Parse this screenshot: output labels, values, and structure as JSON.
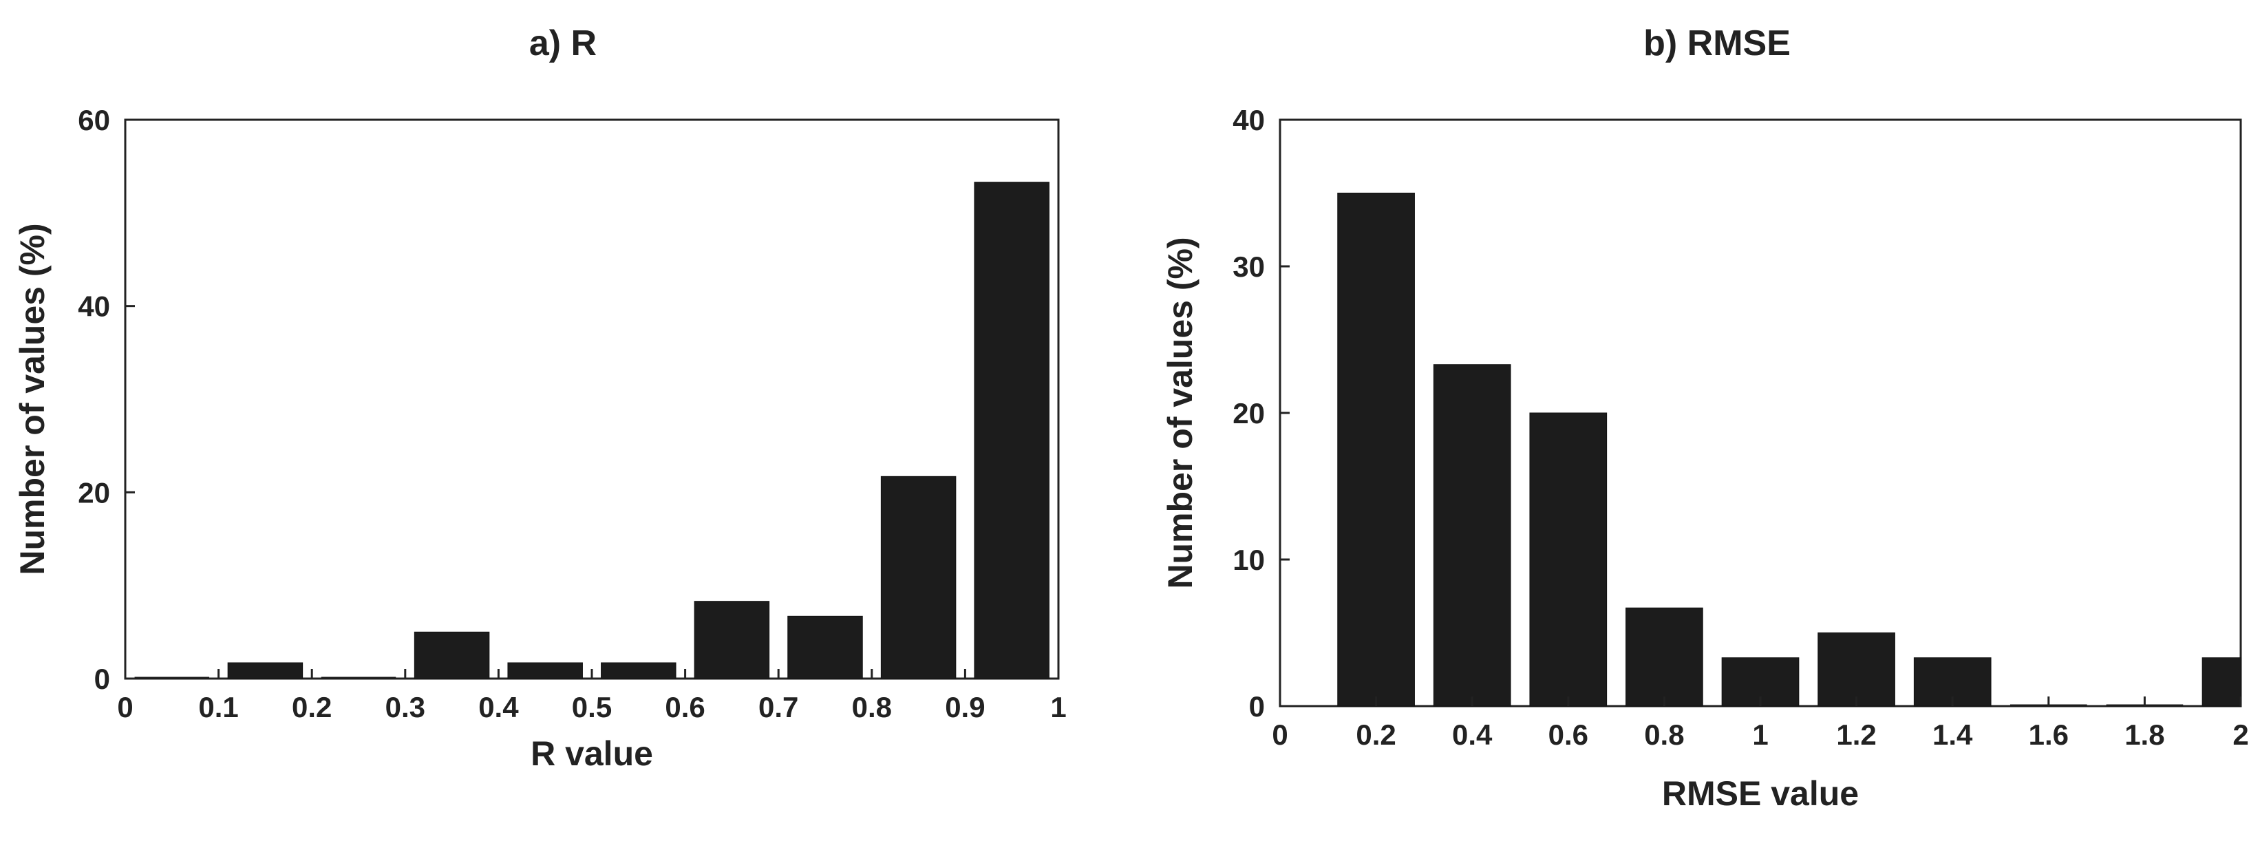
{
  "chart_data": [
    {
      "type": "bar",
      "title": "a) R",
      "xlabel": "R value",
      "ylabel": "Number of values (%)",
      "xlim": [
        0,
        1
      ],
      "ylim": [
        0,
        60
      ],
      "x_ticks": [
        "0",
        "0.1",
        "0.2",
        "0.3",
        "0.4",
        "0.5",
        "0.6",
        "0.7",
        "0.8",
        "0.9",
        "1"
      ],
      "y_ticks": [
        "0",
        "20",
        "40",
        "60"
      ],
      "grid": false,
      "bar_width": 0.08,
      "x": [
        0.05,
        0.15,
        0.25,
        0.35,
        0.45,
        0.55,
        0.65,
        0.75,
        0.85,
        0.95
      ],
      "values": [
        0,
        1.7,
        0,
        5.0,
        1.7,
        1.7,
        8.3,
        6.7,
        21.7,
        53.3
      ],
      "colors": {
        "bar": "#1c1c1c",
        "text": "#222222"
      }
    },
    {
      "type": "bar",
      "title": "b) RMSE",
      "xlabel": "RMSE value",
      "ylabel": "Number of values (%)",
      "xlim": [
        0,
        2
      ],
      "ylim": [
        0,
        40
      ],
      "x_ticks": [
        "0",
        "0.2",
        "0.4",
        "0.6",
        "0.8",
        "1",
        "1.2",
        "1.4",
        "1.6",
        "1.8",
        "2"
      ],
      "y_ticks": [
        "0",
        "10",
        "20",
        "30",
        "40"
      ],
      "grid": false,
      "bar_width": 0.16,
      "x": [
        0.2,
        0.4,
        0.6,
        0.8,
        1.0,
        1.2,
        1.4,
        1.6,
        1.8,
        2.0
      ],
      "values": [
        35.0,
        23.3,
        20.0,
        6.7,
        3.3,
        5.0,
        3.3,
        0,
        0,
        3.3
      ],
      "colors": {
        "bar": "#1c1c1c",
        "text": "#222222"
      }
    }
  ]
}
